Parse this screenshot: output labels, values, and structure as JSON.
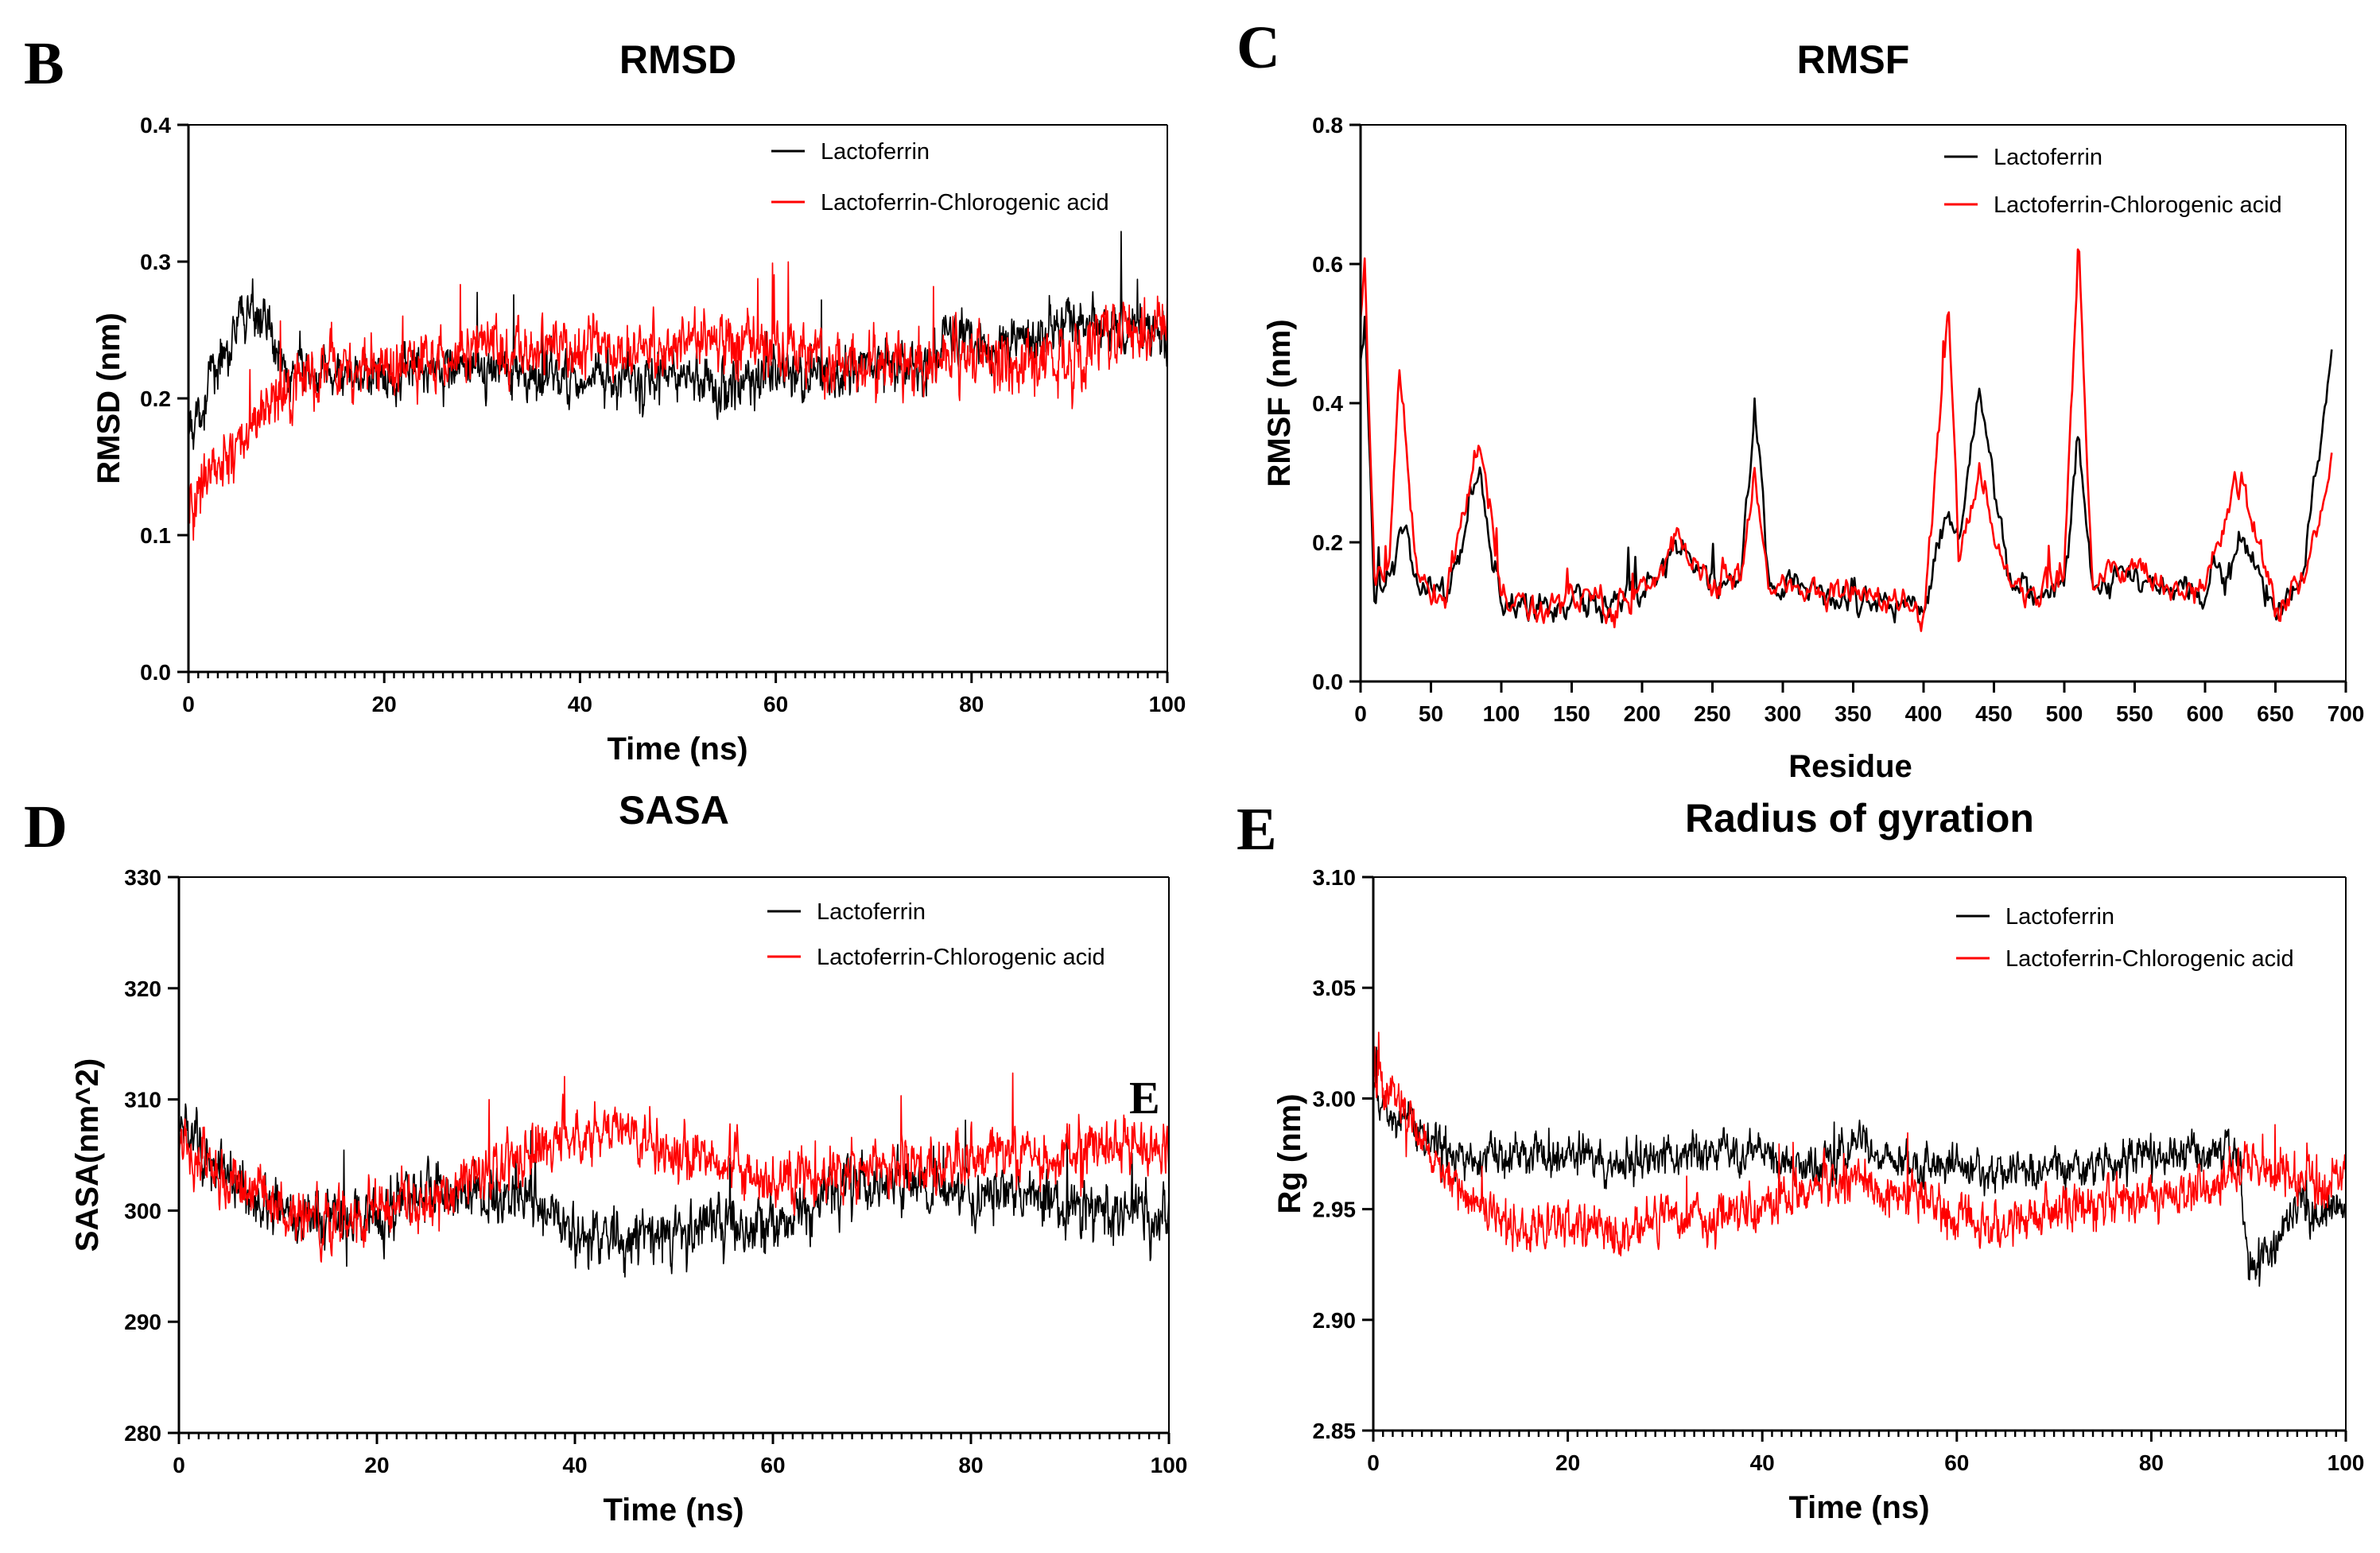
{
  "figure": {
    "stray_mark": "E"
  },
  "chart_data": [
    {
      "panel": "B",
      "type": "line",
      "title": "RMSD",
      "xlabel": "Time (ns)",
      "ylabel": "RMSD (nm)",
      "xlim": [
        0,
        100
      ],
      "ylim": [
        0,
        0.4
      ],
      "xticks": [
        "0",
        "20",
        "40",
        "60",
        "80",
        "100"
      ],
      "yticks": [
        "0.0",
        "0.1",
        "0.2",
        "0.3",
        "0.4"
      ],
      "legend_position": "top-right",
      "series": [
        {
          "name": "Lactoferrin",
          "color": "#000000",
          "x": [
            0,
            2,
            4,
            6,
            7,
            8,
            10,
            15,
            20,
            25,
            30,
            35,
            40,
            45,
            50,
            55,
            60,
            65,
            70,
            75,
            78,
            80,
            85,
            90,
            95,
            100
          ],
          "values": [
            0.17,
            0.21,
            0.24,
            0.26,
            0.27,
            0.25,
            0.22,
            0.215,
            0.22,
            0.225,
            0.22,
            0.215,
            0.215,
            0.21,
            0.215,
            0.21,
            0.215,
            0.215,
            0.22,
            0.225,
            0.245,
            0.24,
            0.24,
            0.255,
            0.25,
            0.25
          ],
          "noise": 0.025
        },
        {
          "name": "Lactoferrin-Chlorogenic acid",
          "color": "#ff0000",
          "x": [
            0,
            2,
            4,
            6,
            8,
            10,
            12,
            15,
            20,
            25,
            30,
            35,
            40,
            45,
            50,
            55,
            60,
            65,
            70,
            75,
            80,
            85,
            90,
            95,
            100
          ],
          "values": [
            0.12,
            0.14,
            0.16,
            0.175,
            0.19,
            0.2,
            0.22,
            0.225,
            0.225,
            0.225,
            0.235,
            0.235,
            0.24,
            0.23,
            0.24,
            0.245,
            0.235,
            0.225,
            0.225,
            0.225,
            0.23,
            0.23,
            0.225,
            0.245,
            0.26
          ],
          "noise": 0.03
        }
      ]
    },
    {
      "panel": "C",
      "type": "line",
      "title": "RMSF",
      "xlabel": "Residue",
      "ylabel": "RMSF (nm)",
      "xlim": [
        0,
        700
      ],
      "ylim": [
        0,
        0.8
      ],
      "xticks": [
        "0",
        "50",
        "100",
        "150",
        "200",
        "250",
        "300",
        "350",
        "400",
        "450",
        "500",
        "550",
        "600",
        "650",
        "700"
      ],
      "yticks": [
        "0.0",
        "0.2",
        "0.4",
        "0.6",
        "0.8"
      ],
      "legend_position": "top-right",
      "series": [
        {
          "name": "Lactoferrin",
          "color": "#000000",
          "x": [
            0,
            3,
            10,
            20,
            28,
            40,
            60,
            85,
            100,
            120,
            150,
            180,
            200,
            225,
            250,
            270,
            280,
            290,
            320,
            350,
            380,
            400,
            418,
            425,
            440,
            460,
            480,
            500,
            510,
            520,
            550,
            580,
            600,
            625,
            650,
            670,
            690
          ],
          "values": [
            0.45,
            0.5,
            0.12,
            0.15,
            0.22,
            0.15,
            0.12,
            0.3,
            0.12,
            0.1,
            0.12,
            0.11,
            0.13,
            0.2,
            0.14,
            0.15,
            0.38,
            0.15,
            0.12,
            0.12,
            0.11,
            0.1,
            0.25,
            0.18,
            0.43,
            0.14,
            0.12,
            0.15,
            0.35,
            0.14,
            0.15,
            0.13,
            0.12,
            0.2,
            0.1,
            0.15,
            0.47
          ],
          "noise": 0.03
        },
        {
          "name": "Lactoferrin-Chlorogenic acid",
          "color": "#ff0000",
          "x": [
            0,
            3,
            10,
            20,
            28,
            40,
            60,
            85,
            100,
            120,
            150,
            180,
            200,
            225,
            250,
            270,
            280,
            290,
            320,
            350,
            380,
            400,
            418,
            425,
            440,
            460,
            480,
            500,
            510,
            520,
            550,
            580,
            600,
            625,
            650,
            670,
            690
          ],
          "values": [
            0.5,
            0.59,
            0.13,
            0.16,
            0.45,
            0.16,
            0.12,
            0.34,
            0.13,
            0.1,
            0.12,
            0.11,
            0.13,
            0.21,
            0.14,
            0.15,
            0.3,
            0.15,
            0.12,
            0.12,
            0.11,
            0.1,
            0.53,
            0.19,
            0.3,
            0.14,
            0.12,
            0.16,
            0.63,
            0.15,
            0.16,
            0.13,
            0.13,
            0.3,
            0.11,
            0.15,
            0.3
          ],
          "noise": 0.03
        }
      ]
    },
    {
      "panel": "D",
      "type": "line",
      "title": "SASA",
      "xlabel": "Time (ns)",
      "ylabel": "SASA(nm^2)",
      "xlim": [
        0,
        100
      ],
      "ylim": [
        280,
        330
      ],
      "xticks": [
        "0",
        "20",
        "40",
        "60",
        "80",
        "100"
      ],
      "yticks": [
        "280",
        "290",
        "300",
        "310",
        "320",
        "330"
      ],
      "legend_position": "top-right",
      "series": [
        {
          "name": "Lactoferrin",
          "color": "#000000",
          "x": [
            0,
            5,
            10,
            15,
            20,
            25,
            30,
            35,
            40,
            45,
            50,
            55,
            60,
            65,
            70,
            75,
            80,
            85,
            90,
            95,
            100
          ],
          "values": [
            307,
            303,
            300,
            299,
            300,
            302,
            301,
            301,
            298,
            297,
            298,
            299,
            298,
            302,
            303,
            302,
            302,
            302,
            300,
            300,
            300
          ],
          "noise": 3.5
        },
        {
          "name": "Lactoferrin-Chlorogenic acid",
          "color": "#ff0000",
          "x": [
            0,
            5,
            10,
            15,
            20,
            25,
            30,
            35,
            40,
            45,
            50,
            55,
            60,
            65,
            70,
            75,
            80,
            85,
            90,
            95,
            100
          ],
          "values": [
            306,
            303,
            300,
            299,
            300,
            301,
            303,
            305,
            307,
            307,
            305,
            304,
            302,
            303,
            304,
            304,
            305,
            305,
            305,
            306,
            305
          ],
          "noise": 3.5
        }
      ]
    },
    {
      "panel": "E",
      "type": "line",
      "title": "Radius of gyration",
      "xlabel": "Time (ns)",
      "ylabel": "Rg (nm)",
      "xlim": [
        0,
        100
      ],
      "ylim": [
        2.85,
        3.1
      ],
      "xticks": [
        "0",
        "20",
        "40",
        "60",
        "80",
        "100"
      ],
      "yticks": [
        "2.85",
        "2.90",
        "2.95",
        "3.00",
        "3.05",
        "3.10"
      ],
      "legend_position": "top-right",
      "series": [
        {
          "name": "Lactoferrin",
          "color": "#000000",
          "x": [
            0,
            3,
            6,
            10,
            15,
            20,
            25,
            30,
            35,
            40,
            45,
            50,
            55,
            60,
            65,
            70,
            75,
            80,
            85,
            89,
            90,
            92,
            95,
            100
          ],
          "values": [
            3.0,
            2.99,
            2.98,
            2.97,
            2.975,
            2.975,
            2.97,
            2.975,
            2.975,
            2.975,
            2.97,
            2.98,
            2.97,
            2.97,
            2.965,
            2.97,
            2.97,
            2.975,
            2.975,
            2.975,
            2.92,
            2.93,
            2.95,
            2.95
          ],
          "noise": 0.012
        },
        {
          "name": "Lactoferrin-Chlorogenic acid",
          "color": "#ff0000",
          "x": [
            0,
            3,
            6,
            10,
            15,
            20,
            25,
            30,
            35,
            40,
            45,
            50,
            55,
            60,
            65,
            70,
            75,
            80,
            85,
            90,
            95,
            100
          ],
          "values": [
            3.01,
            2.995,
            2.975,
            2.955,
            2.94,
            2.945,
            2.94,
            2.945,
            2.945,
            2.95,
            2.96,
            2.965,
            2.955,
            2.945,
            2.945,
            2.95,
            2.955,
            2.955,
            2.96,
            2.97,
            2.965,
            2.96
          ],
          "noise": 0.014
        }
      ]
    }
  ]
}
